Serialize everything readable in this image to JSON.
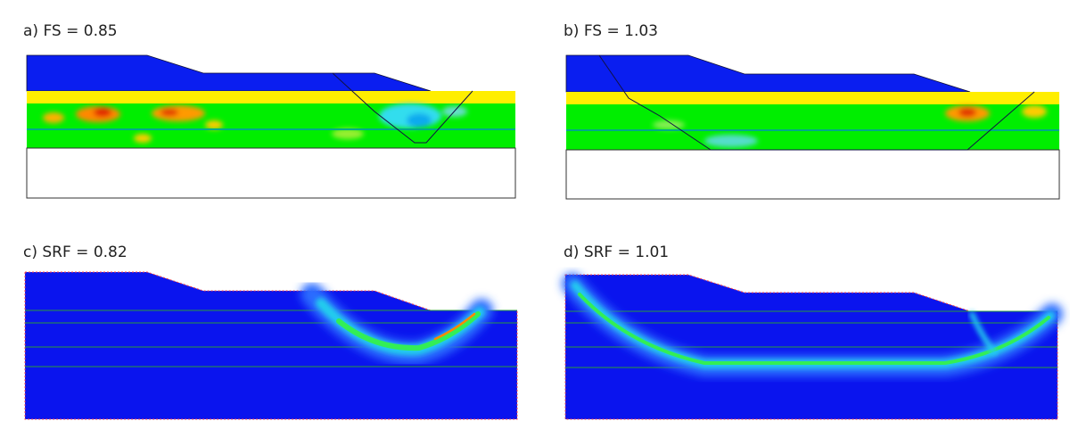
{
  "panels": [
    {
      "label": "a) FS = 0.85"
    },
    {
      "label": "b) FS = 1.03"
    },
    {
      "label": "c) SRF = 0.82"
    },
    {
      "label": "d) SRF = 1.01"
    }
  ]
}
